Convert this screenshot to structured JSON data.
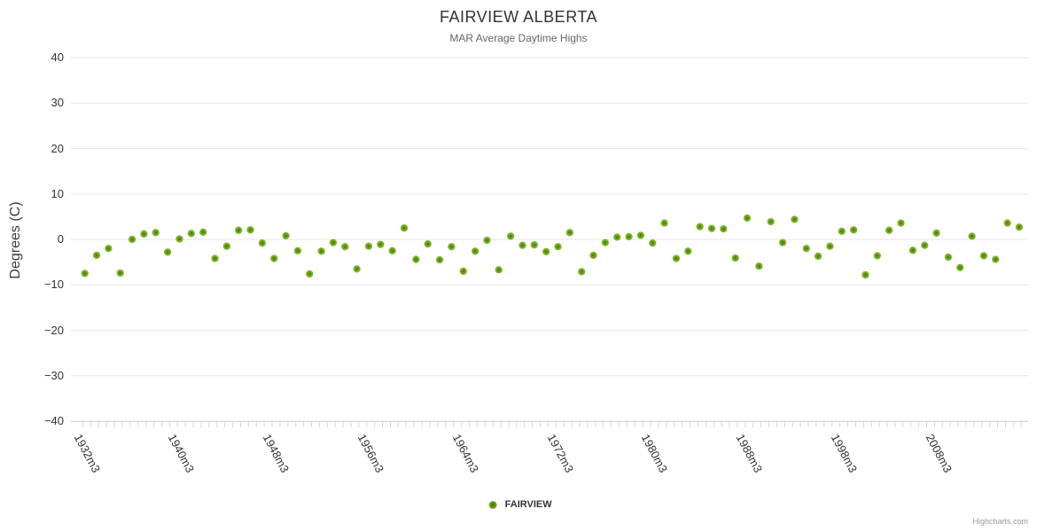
{
  "chart": {
    "title": "FAIRVIEW ALBERTA",
    "subtitle": "MAR Average Daytime Highs",
    "y_axis_title": "Degrees (C)",
    "legend_label": "FAIRVIEW",
    "credit": "Highcharts.com",
    "colors": {
      "marker_outer": "#7db42c",
      "marker_center": "#3f7404",
      "gridline": "#e6e6e6",
      "axis_line": "#ccd6eb",
      "title_text": "#333333",
      "subtitle_text": "#666666",
      "label_text": "#333333",
      "credit_text": "#999999"
    }
  },
  "chart_data": {
    "type": "scatter",
    "title": "FAIRVIEW ALBERTA",
    "subtitle": "MAR Average Daytime Highs",
    "xlabel": "",
    "ylabel": "Degrees (C)",
    "ylim": [
      -40,
      40
    ],
    "y_ticks": [
      40,
      30,
      20,
      10,
      0,
      -10,
      -20,
      -30,
      -40
    ],
    "grid": "horizontal-only",
    "legend_position": "bottom-center",
    "x_tick_labels": [
      "1932m3",
      "1940m3",
      "1948m3",
      "1956m3",
      "1964m3",
      "1972m3",
      "1980m3",
      "1988m3",
      "1998m3",
      "2008m3"
    ],
    "x_tick_label_positions": [
      0,
      8,
      16,
      24,
      32,
      40,
      48,
      56,
      64,
      72
    ],
    "series": [
      {
        "name": "FAIRVIEW",
        "values": [
          -7.5,
          -3.5,
          -2.0,
          -7.4,
          0.0,
          1.2,
          1.5,
          -2.8,
          0.1,
          1.3,
          1.6,
          -4.2,
          -1.5,
          2.0,
          2.1,
          -0.8,
          -4.2,
          0.8,
          -2.5,
          -7.6,
          -2.6,
          -0.7,
          -1.6,
          -6.5,
          -1.5,
          -1.1,
          -2.5,
          2.5,
          -4.4,
          -1.0,
          -4.5,
          -1.6,
          -7.0,
          -2.6,
          -0.2,
          -6.7,
          0.7,
          -1.3,
          -1.2,
          -2.7,
          -1.6,
          1.5,
          -7.1,
          -3.5,
          -0.7,
          0.5,
          0.6,
          0.9,
          -0.8,
          3.6,
          -4.2,
          -2.6,
          2.8,
          2.4,
          2.3,
          -4.1,
          4.7,
          -5.9,
          3.9,
          -0.7,
          4.4,
          -2.0,
          -3.7,
          -1.5,
          1.8,
          2.1,
          -7.8,
          -3.6,
          2.0,
          3.6,
          -2.4,
          -1.3,
          1.4,
          -3.9,
          -6.2,
          0.7,
          -3.6,
          -4.4,
          3.6,
          2.7
        ]
      }
    ]
  }
}
